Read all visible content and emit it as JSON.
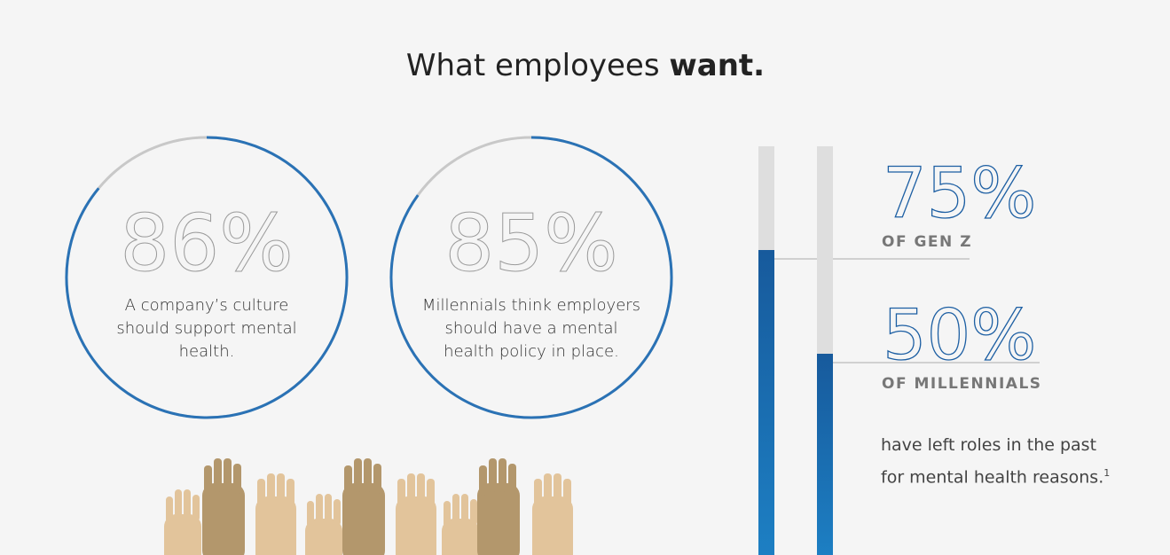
{
  "title": {
    "text": "What employees",
    "emphasis": "want."
  },
  "rings": [
    {
      "value": 86,
      "value_label": "86%",
      "caption": "A company’s culture should support mental health."
    },
    {
      "value": 85,
      "value_label": "85%",
      "caption": "Millennials think employers should have a mental health policy in place."
    }
  ],
  "bars": [
    {
      "value": 75,
      "value_label": "75%",
      "label": "OF GEN Z"
    },
    {
      "value": 50,
      "value_label": "50%",
      "label": "OF MILLENNIALS"
    }
  ],
  "note": "have left roles in the past for mental health reasons.",
  "footnote": "1"
}
